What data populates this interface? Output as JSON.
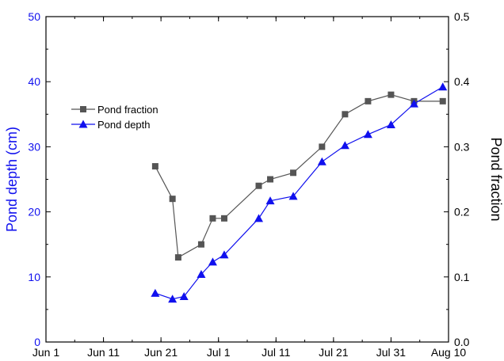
{
  "chart_data": {
    "type": "line",
    "x_axis": {
      "start": "2000-06-01",
      "end": "2000-08-10",
      "ticks": [
        {
          "date": "2000-06-01",
          "label": "Jun 1"
        },
        {
          "date": "2000-06-11",
          "label": "Jun 11"
        },
        {
          "date": "2000-06-21",
          "label": "Jun 21"
        },
        {
          "date": "2000-07-01",
          "label": "Jul 1"
        },
        {
          "date": "2000-07-11",
          "label": "Jul 11"
        },
        {
          "date": "2000-07-21",
          "label": "Jul 21"
        },
        {
          "date": "2000-07-31",
          "label": "Jul 31"
        },
        {
          "date": "2000-08-10",
          "label": "Aug 10"
        }
      ]
    },
    "y_left": {
      "label": "Pond depth (cm)",
      "min": 0,
      "max": 50,
      "ticks": [
        0,
        10,
        20,
        30,
        40,
        50
      ],
      "color": "#1010ee"
    },
    "y_right": {
      "label": "Pond fraction",
      "min": 0.0,
      "max": 0.5,
      "ticks": [
        "0.0",
        "0.1",
        "0.2",
        "0.3",
        "0.4",
        "0.5"
      ],
      "color": "#000000"
    },
    "legend": {
      "placement": "upper-left",
      "entries": [
        {
          "series": "pond_fraction",
          "label": "Pond fraction"
        },
        {
          "series": "pond_depth",
          "label": "Pond depth"
        }
      ]
    },
    "grid": false,
    "series": [
      {
        "id": "pond_fraction",
        "name": "Pond fraction",
        "axis": "right",
        "marker": "square",
        "color": "#555555",
        "points": [
          {
            "x": "2000-06-20",
            "y": 0.27
          },
          {
            "x": "2000-06-23",
            "y": 0.22
          },
          {
            "x": "2000-06-24",
            "y": 0.13
          },
          {
            "x": "2000-06-28",
            "y": 0.15
          },
          {
            "x": "2000-06-30",
            "y": 0.19
          },
          {
            "x": "2000-07-02",
            "y": 0.19
          },
          {
            "x": "2000-07-08",
            "y": 0.24
          },
          {
            "x": "2000-07-10",
            "y": 0.25
          },
          {
            "x": "2000-07-14",
            "y": 0.26
          },
          {
            "x": "2000-07-19",
            "y": 0.3
          },
          {
            "x": "2000-07-23",
            "y": 0.35
          },
          {
            "x": "2000-07-27",
            "y": 0.37
          },
          {
            "x": "2000-07-31",
            "y": 0.38
          },
          {
            "x": "2000-08-04",
            "y": 0.37
          },
          {
            "x": "2000-08-09",
            "y": 0.37
          }
        ]
      },
      {
        "id": "pond_depth",
        "name": "Pond depth",
        "axis": "left",
        "marker": "triangle",
        "color": "#1010ee",
        "points": [
          {
            "x": "2000-06-20",
            "y": 7.5
          },
          {
            "x": "2000-06-23",
            "y": 6.6
          },
          {
            "x": "2000-06-25",
            "y": 7.0
          },
          {
            "x": "2000-06-28",
            "y": 10.4
          },
          {
            "x": "2000-06-30",
            "y": 12.3
          },
          {
            "x": "2000-07-02",
            "y": 13.4
          },
          {
            "x": "2000-07-08",
            "y": 19.0
          },
          {
            "x": "2000-07-10",
            "y": 21.7
          },
          {
            "x": "2000-07-14",
            "y": 22.4
          },
          {
            "x": "2000-07-19",
            "y": 27.7
          },
          {
            "x": "2000-07-23",
            "y": 30.2
          },
          {
            "x": "2000-07-27",
            "y": 31.9
          },
          {
            "x": "2000-07-31",
            "y": 33.4
          },
          {
            "x": "2000-08-04",
            "y": 36.6
          },
          {
            "x": "2000-08-09",
            "y": 39.2
          }
        ]
      }
    ]
  }
}
